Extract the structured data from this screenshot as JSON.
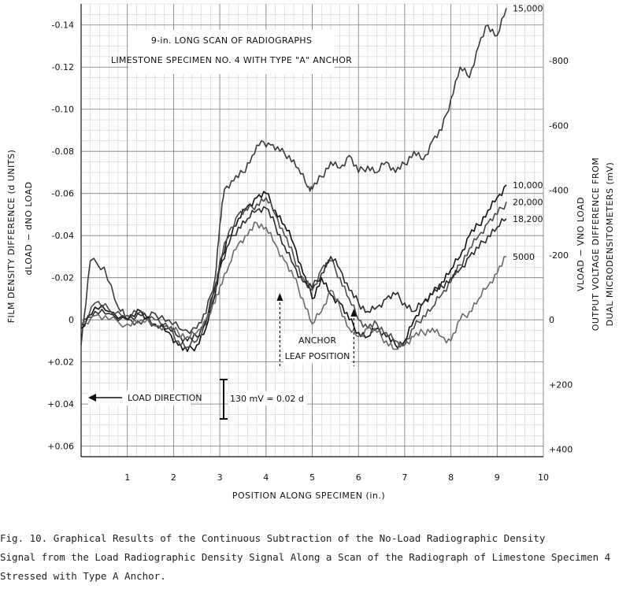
{
  "chart_data": {
    "type": "line",
    "title_lines": [
      "9-in. LONG SCAN OF RADIOGRAPHS",
      "LIMESTONE SPECIMEN NO. 4 WITH TYPE \"A\" ANCHOR"
    ],
    "xlabel": "POSITION ALONG SPECIMEN (in.)",
    "ylabel_left": "FILM DENSITY DIFFERENCE (d UNITS)",
    "ylabel_left_sub": "dLOAD − dNO LOAD",
    "ylabel_right_lines": [
      "VLOAD − VNO LOAD",
      "OUTPUT VOLTAGE DIFFERENCE FROM",
      "DUAL MICRODENSITOMETERS (mV)"
    ],
    "xlim": [
      0,
      10
    ],
    "ylim_left": [
      -0.15,
      0.065
    ],
    "ylim_right_mv": [
      -975,
      422.5
    ],
    "x_ticks": [
      "1",
      "2",
      "3",
      "4",
      "5",
      "6",
      "7",
      "8",
      "9",
      "10"
    ],
    "y_ticks_left": [
      "-0.14",
      "-0.12",
      "-0.10",
      "-0.08",
      "-0.06",
      "-0.04",
      "-0.02",
      "0",
      "+0.02",
      "+0.04",
      "+0.06"
    ],
    "y_ticks_right": [
      "-800",
      "-600",
      "-400",
      "-200",
      "0",
      "+200",
      "+400"
    ],
    "grid": true,
    "annotations": {
      "load_direction": "LOAD DIRECTION",
      "scale_bar": "130 mV = 0.02 d",
      "anchor_line1": "ANCHOR",
      "anchor_line2": "LEAF POSITION",
      "anchor_leaf_x": [
        4.3,
        5.9
      ]
    },
    "series": [
      {
        "name": "15,000",
        "x": [
          0,
          0.2,
          0.5,
          0.8,
          1.0,
          1.3,
          1.6,
          1.9,
          2.2,
          2.5,
          2.7,
          2.9,
          3.0,
          3.1,
          3.3,
          3.5,
          3.7,
          3.9,
          4.1,
          4.3,
          4.5,
          4.7,
          4.9,
          5.0,
          5.2,
          5.4,
          5.6,
          5.8,
          6.0,
          6.2,
          6.4,
          6.6,
          6.8,
          7.0,
          7.2,
          7.4,
          7.6,
          7.8,
          8.0,
          8.2,
          8.4,
          8.6,
          8.8,
          9.0,
          9.2
        ],
        "y": [
          0.012,
          -0.028,
          -0.025,
          -0.006,
          0.0,
          0.002,
          -0.003,
          0.0,
          0.005,
          0.004,
          -0.003,
          -0.02,
          -0.045,
          -0.062,
          -0.066,
          -0.07,
          -0.078,
          -0.085,
          -0.083,
          -0.08,
          -0.078,
          -0.072,
          -0.063,
          -0.062,
          -0.068,
          -0.075,
          -0.072,
          -0.078,
          -0.07,
          -0.073,
          -0.07,
          -0.075,
          -0.07,
          -0.074,
          -0.08,
          -0.076,
          -0.085,
          -0.09,
          -0.105,
          -0.12,
          -0.115,
          -0.13,
          -0.14,
          -0.135,
          -0.148
        ]
      },
      {
        "name": "10,000",
        "x": [
          0,
          0.3,
          0.6,
          1.0,
          1.3,
          1.6,
          1.9,
          2.1,
          2.3,
          2.5,
          2.7,
          2.9,
          3.0,
          3.2,
          3.4,
          3.6,
          3.8,
          4.0,
          4.2,
          4.4,
          4.6,
          4.8,
          5.0,
          5.2,
          5.4,
          5.6,
          5.8,
          6.0,
          6.2,
          6.4,
          6.6,
          6.8,
          7.0,
          7.2,
          7.4,
          7.6,
          7.8,
          8.0,
          8.2,
          8.4,
          8.6,
          8.8,
          9.0,
          9.2
        ],
        "y": [
          0.004,
          -0.006,
          -0.004,
          0.0,
          -0.004,
          0.002,
          0.006,
          0.012,
          0.015,
          0.012,
          0.004,
          -0.012,
          -0.025,
          -0.04,
          -0.048,
          -0.054,
          -0.058,
          -0.06,
          -0.052,
          -0.045,
          -0.036,
          -0.022,
          -0.01,
          -0.02,
          -0.012,
          -0.008,
          0.0,
          0.006,
          0.008,
          0.004,
          0.008,
          0.012,
          0.01,
          0.0,
          -0.008,
          -0.012,
          -0.018,
          -0.024,
          -0.03,
          -0.04,
          -0.045,
          -0.052,
          -0.058,
          -0.064
        ]
      },
      {
        "name": "20,000",
        "x": [
          0,
          0.3,
          0.6,
          1.0,
          1.3,
          1.6,
          1.9,
          2.1,
          2.3,
          2.5,
          2.7,
          2.9,
          3.0,
          3.2,
          3.4,
          3.6,
          3.8,
          4.0,
          4.2,
          4.4,
          4.6,
          4.8,
          5.0,
          5.2,
          5.4,
          5.6,
          5.8,
          6.0,
          6.2,
          6.4,
          6.6,
          6.8,
          7.0,
          7.2,
          7.4,
          7.6,
          7.8,
          8.0,
          8.2,
          8.4,
          8.6,
          8.8,
          9.0,
          9.2
        ],
        "y": [
          0.003,
          -0.008,
          -0.005,
          -0.002,
          -0.004,
          0.0,
          0.004,
          0.01,
          0.013,
          0.01,
          0.002,
          -0.014,
          -0.028,
          -0.042,
          -0.05,
          -0.052,
          -0.055,
          -0.058,
          -0.05,
          -0.04,
          -0.03,
          -0.02,
          -0.014,
          -0.024,
          -0.028,
          -0.02,
          -0.01,
          0.0,
          0.004,
          0.002,
          0.006,
          0.01,
          0.012,
          0.004,
          -0.002,
          -0.006,
          -0.012,
          -0.018,
          -0.026,
          -0.034,
          -0.04,
          -0.046,
          -0.05,
          -0.056
        ]
      },
      {
        "name": "18,200",
        "x": [
          0,
          0.3,
          0.6,
          1.0,
          1.3,
          1.6,
          1.9,
          2.1,
          2.3,
          2.5,
          2.7,
          2.9,
          3.0,
          3.2,
          3.4,
          3.6,
          3.8,
          4.0,
          4.2,
          4.4,
          4.6,
          4.8,
          5.0,
          5.2,
          5.4,
          5.6,
          5.8,
          6.0,
          6.2,
          6.4,
          6.6,
          6.8,
          7.0,
          7.2,
          7.4,
          7.6,
          7.8,
          8.0,
          8.2,
          8.4,
          8.6,
          8.8,
          9.0,
          9.2
        ],
        "y": [
          0.002,
          -0.004,
          -0.003,
          0.0,
          -0.002,
          0.002,
          0.004,
          0.008,
          0.01,
          0.008,
          0.0,
          -0.016,
          -0.024,
          -0.036,
          -0.044,
          -0.048,
          -0.052,
          -0.053,
          -0.045,
          -0.035,
          -0.026,
          -0.018,
          -0.015,
          -0.022,
          -0.03,
          -0.024,
          -0.014,
          -0.008,
          -0.004,
          -0.006,
          -0.01,
          -0.012,
          -0.008,
          -0.004,
          -0.008,
          -0.012,
          -0.016,
          -0.02,
          -0.024,
          -0.03,
          -0.034,
          -0.04,
          -0.044,
          -0.048
        ]
      },
      {
        "name": "5000",
        "x": [
          0,
          0.3,
          0.6,
          1.0,
          1.3,
          1.6,
          1.9,
          2.1,
          2.3,
          2.5,
          2.7,
          2.9,
          3.0,
          3.2,
          3.4,
          3.6,
          3.8,
          4.0,
          4.2,
          4.4,
          4.6,
          4.8,
          5.0,
          5.2,
          5.4,
          5.6,
          5.8,
          6.0,
          6.2,
          6.4,
          6.6,
          6.8,
          7.0,
          7.2,
          7.4,
          7.6,
          7.8,
          8.0,
          8.2,
          8.4,
          8.6,
          8.8,
          9.0,
          9.2
        ],
        "y": [
          0.002,
          -0.002,
          0.0,
          0.002,
          0.0,
          0.003,
          0.004,
          0.006,
          0.008,
          0.006,
          0.0,
          -0.008,
          -0.016,
          -0.026,
          -0.036,
          -0.04,
          -0.046,
          -0.044,
          -0.036,
          -0.028,
          -0.02,
          -0.01,
          0.002,
          -0.004,
          -0.014,
          -0.006,
          0.004,
          0.008,
          0.004,
          0.006,
          0.01,
          0.014,
          0.012,
          0.008,
          0.006,
          0.004,
          0.008,
          0.01,
          0.0,
          -0.004,
          -0.01,
          -0.016,
          -0.022,
          -0.03
        ]
      }
    ]
  },
  "caption": {
    "line1": "Fig. 10.  Graphical Results of the Continuous Subtraction of the No-Load Radiographic Density",
    "line2": "Signal from the Load Radiographic Density Signal Along a Scan of the Radiograph of Limestone Specimen 4",
    "line3": "Stressed with Type A Anchor."
  }
}
